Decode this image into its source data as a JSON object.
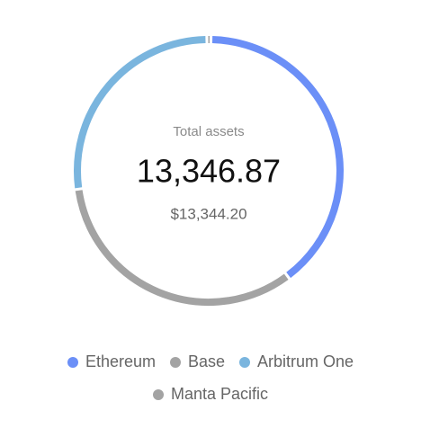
{
  "chart_data": {
    "type": "donut",
    "center_label": "Total assets",
    "center_value": "13,346.87",
    "center_subvalue": "$13,344.20",
    "series": [
      {
        "name": "Ethereum",
        "color": "#6b8ff7",
        "value": 39.5
      },
      {
        "name": "Base",
        "color": "#a3a3a3",
        "value": 33
      },
      {
        "name": "Arbitrum One",
        "color": "#7ab5de",
        "value": 27
      },
      {
        "name": "Manta Pacific",
        "color": "#a3a3a3",
        "value": 0.5
      }
    ]
  }
}
